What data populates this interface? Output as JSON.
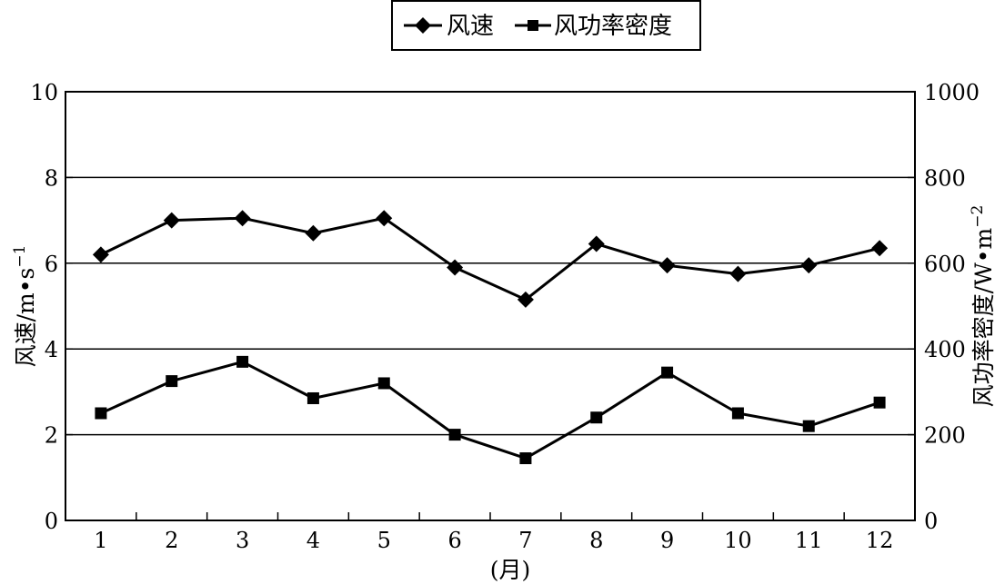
{
  "chart_data": {
    "type": "line",
    "categories": [
      "1",
      "2",
      "3",
      "4",
      "5",
      "6",
      "7",
      "8",
      "9",
      "10",
      "11",
      "12"
    ],
    "xlabel": "(月)",
    "ylabel_left_main": "风速/m",
    "ylabel_left_dot": "•",
    "ylabel_left_unit": "s",
    "ylabel_left_exp": "−1",
    "ylabel_right_main": "风功率密度/W",
    "ylabel_right_dot": "•",
    "ylabel_right_unit": "m",
    "ylabel_right_exp": "−2",
    "ylim_left": [
      0,
      10
    ],
    "ylim_right": [
      0,
      1000
    ],
    "yticks_left": [
      "0",
      "2",
      "4",
      "6",
      "8",
      "10"
    ],
    "yticks_right": [
      "0",
      "200",
      "400",
      "600",
      "800",
      "1000"
    ],
    "grid": "horizontal",
    "legend_position": "top-center",
    "series": [
      {
        "name": "风速",
        "axis": "left",
        "marker": "diamond",
        "values": [
          6.2,
          7.0,
          7.05,
          6.7,
          7.05,
          5.9,
          5.15,
          6.45,
          5.95,
          5.75,
          5.95,
          6.35
        ]
      },
      {
        "name": "风功率密度",
        "axis": "right",
        "marker": "square",
        "values": [
          250,
          325,
          370,
          285,
          320,
          200,
          145,
          240,
          345,
          250,
          220,
          275
        ]
      }
    ],
    "colors": {
      "line": "#000000",
      "background": "#ffffff"
    }
  }
}
